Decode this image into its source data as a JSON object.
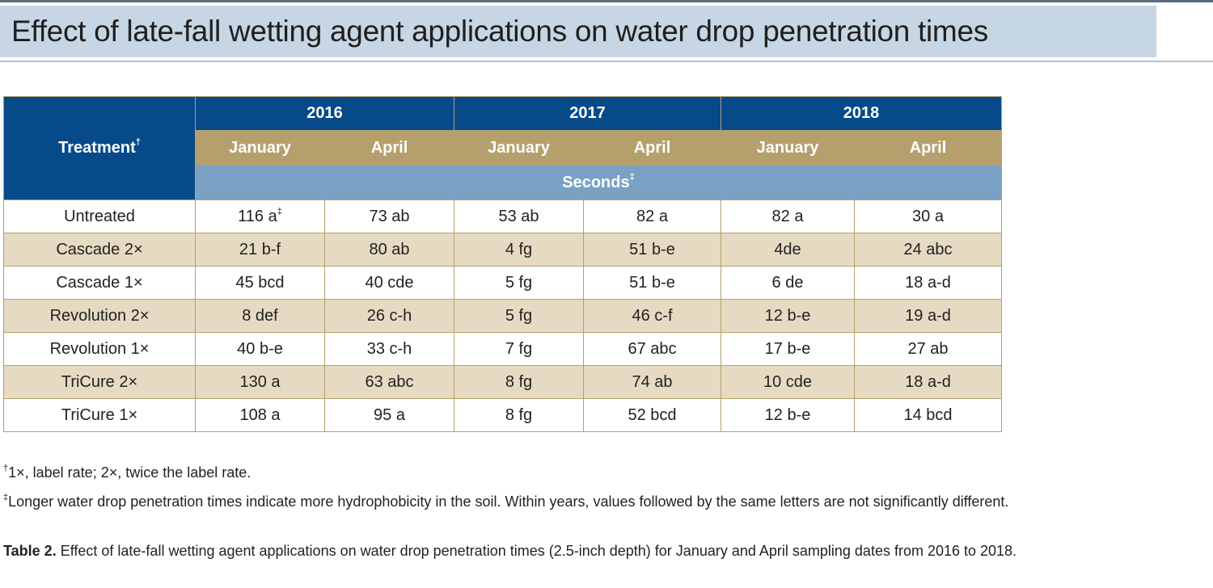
{
  "title": "Effect of late-fall wetting agent applications on water drop penetration times",
  "table": {
    "treatment_header": "Treatment",
    "treatment_header_mark": "†",
    "years": [
      "2016",
      "2017",
      "2018"
    ],
    "months": [
      "January",
      "April",
      "January",
      "April",
      "January",
      "April"
    ],
    "unit_label": "Seconds",
    "unit_mark": "‡",
    "rows": [
      {
        "treatment": "Untreated",
        "values": [
          "116 a",
          "73 ab",
          "53 ab",
          "82 a",
          "82 a",
          "30 a"
        ],
        "first_mark": "‡"
      },
      {
        "treatment": "Cascade 2×",
        "values": [
          "21 b-f",
          "80 ab",
          "4 fg",
          "51 b-e",
          "4de",
          "24 abc"
        ]
      },
      {
        "treatment": "Cascade 1×",
        "values": [
          "45 bcd",
          "40 cde",
          "5 fg",
          "51 b-e",
          "6 de",
          "18 a-d"
        ]
      },
      {
        "treatment": "Revolution 2×",
        "values": [
          "8 def",
          "26 c-h",
          "5 fg",
          "46 c-f",
          "12 b-e",
          "19 a-d"
        ]
      },
      {
        "treatment": "Revolution 1×",
        "values": [
          "40 b-e",
          "33 c-h",
          "7 fg",
          "67 abc",
          "17 b-e",
          "27 ab"
        ]
      },
      {
        "treatment": "TriCure 2×",
        "values": [
          "130 a",
          "63 abc",
          "8 fg",
          "74 ab",
          "10 cde",
          "18 a-d"
        ]
      },
      {
        "treatment": "TriCure 1×",
        "values": [
          "108 a",
          "95 a",
          "8 fg",
          "52 bcd",
          "12 b-e",
          "14 bcd"
        ]
      }
    ]
  },
  "notes": {
    "note1_mark": "†",
    "note1": "1×, label rate; 2×, twice the label rate.",
    "note2_mark": "‡",
    "note2": "Longer water drop penetration times indicate more hydrophobicity in the soil. Within years, values followed by the same letters are not significantly different."
  },
  "caption": {
    "label": "Table 2.",
    "text": " Effect of late-fall wetting agent applications on water drop penetration times (2.5-inch depth) for January and April sampling dates from 2016 to 2018."
  },
  "colors": {
    "header_blue": "#064a8a",
    "month_tan": "#b5a06d",
    "unit_blue": "#7aa1c4",
    "stripe": "#e6dbc2",
    "title_band": "#c6d6e4"
  }
}
